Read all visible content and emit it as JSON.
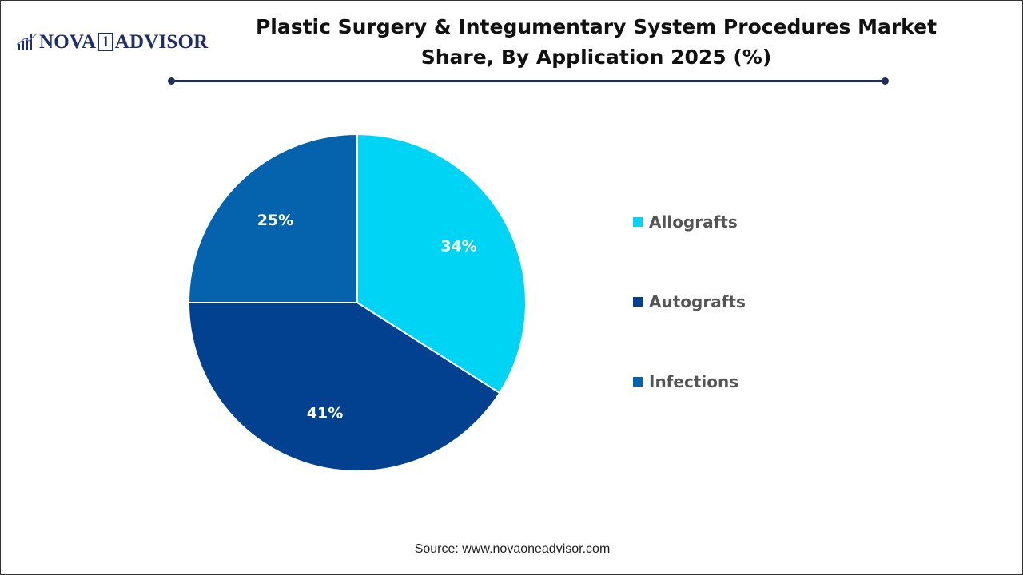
{
  "logo": {
    "brand_left": "NOVA",
    "brand_digit": "1",
    "brand_right": "ADVISOR"
  },
  "title": "Plastic Surgery & Integumentary System Procedures Market Share, By Application 2025 (%)",
  "source": "Source: www.novaoneadvisor.com",
  "colors": {
    "allografts": "#00d4f5",
    "autografts": "#024190",
    "infections": "#0563ad",
    "title_rule": "#1f2d5a",
    "logo": "#1f2d6b"
  },
  "chart_data": {
    "type": "pie",
    "title": "Plastic Surgery & Integumentary System Procedures Market Share, By Application 2025 (%)",
    "categories": [
      "Allografts",
      "Autografts",
      "Infections"
    ],
    "values": [
      34,
      41,
      25
    ],
    "labels": [
      "34%",
      "41%",
      "25%"
    ],
    "colors": [
      "#00d4f5",
      "#024190",
      "#0563ad"
    ],
    "start_angle_deg": 0,
    "direction": "clockwise",
    "legend_position": "right"
  }
}
